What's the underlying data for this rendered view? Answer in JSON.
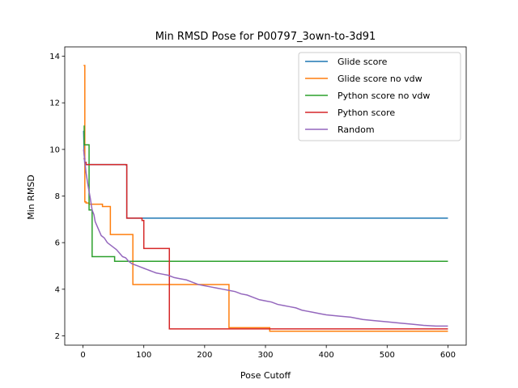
{
  "chart_data": {
    "type": "line",
    "title": "Min RMSD Pose for P00797_3own-to-3d91",
    "xlabel": "Pose Cutoff",
    "ylabel": "Min RMSD",
    "xlim": [
      -30,
      630
    ],
    "ylim": [
      1.6,
      14.4
    ],
    "xticks": [
      0,
      100,
      200,
      300,
      400,
      500,
      600
    ],
    "yticks": [
      2,
      4,
      6,
      8,
      10,
      12,
      14
    ],
    "legend_position": "upper right",
    "series": [
      {
        "name": "Glide score",
        "color": "#1f77b4",
        "x": [
          1,
          2,
          3,
          70,
          72,
          72,
          100,
          600
        ],
        "y": [
          10.8,
          9.8,
          9.35,
          9.35,
          9.3,
          7.05,
          7.05,
          7.05
        ]
      },
      {
        "name": "Glide score no vdw",
        "color": "#ff7f0e",
        "x": [
          1,
          3,
          3,
          5,
          5,
          10,
          10,
          32,
          32,
          45,
          45,
          82,
          82,
          240,
          240,
          307,
          307,
          600
        ],
        "y": [
          13.6,
          13.6,
          7.75,
          7.75,
          7.7,
          7.7,
          7.65,
          7.65,
          7.55,
          7.55,
          6.35,
          6.35,
          4.2,
          4.2,
          2.35,
          2.35,
          2.2,
          2.2
        ]
      },
      {
        "name": "Python score no vdw",
        "color": "#2ca02c",
        "x": [
          1,
          2,
          2,
          10,
          10,
          15,
          15,
          52,
          52,
          600
        ],
        "y": [
          11.0,
          11.0,
          10.2,
          10.2,
          7.4,
          7.4,
          5.4,
          5.4,
          5.2,
          5.2
        ]
      },
      {
        "name": "Python score",
        "color": "#d62728",
        "x": [
          1,
          3,
          3,
          5,
          5,
          72,
          72,
          97,
          97,
          100,
          100,
          142,
          142,
          600
        ],
        "y": [
          9.6,
          9.6,
          9.45,
          9.45,
          9.35,
          9.35,
          7.05,
          7.05,
          6.95,
          6.95,
          5.75,
          5.75,
          2.3,
          2.3
        ]
      },
      {
        "name": "Random",
        "color": "#9467bd",
        "x": [
          1,
          3,
          5,
          8,
          12,
          15,
          18,
          20,
          25,
          30,
          35,
          40,
          45,
          50,
          55,
          60,
          65,
          70,
          75,
          80,
          85,
          90,
          95,
          100,
          105,
          110,
          115,
          120,
          130,
          140,
          150,
          160,
          170,
          180,
          190,
          200,
          210,
          220,
          230,
          240,
          250,
          260,
          270,
          280,
          290,
          300,
          310,
          320,
          330,
          340,
          350,
          360,
          370,
          380,
          390,
          400,
          420,
          440,
          460,
          480,
          500,
          520,
          540,
          560,
          580,
          600
        ],
        "y": [
          10.0,
          9.5,
          9.0,
          8.5,
          7.9,
          7.4,
          7.2,
          6.9,
          6.6,
          6.3,
          6.2,
          6.0,
          5.9,
          5.8,
          5.7,
          5.55,
          5.4,
          5.35,
          5.2,
          5.1,
          5.05,
          5.0,
          4.95,
          4.9,
          4.85,
          4.8,
          4.75,
          4.7,
          4.65,
          4.6,
          4.5,
          4.45,
          4.4,
          4.3,
          4.2,
          4.15,
          4.1,
          4.05,
          4.0,
          3.95,
          3.9,
          3.8,
          3.75,
          3.65,
          3.55,
          3.5,
          3.45,
          3.35,
          3.3,
          3.25,
          3.2,
          3.1,
          3.05,
          3.0,
          2.95,
          2.9,
          2.85,
          2.8,
          2.7,
          2.65,
          2.6,
          2.55,
          2.5,
          2.45,
          2.42,
          2.42
        ]
      }
    ]
  }
}
